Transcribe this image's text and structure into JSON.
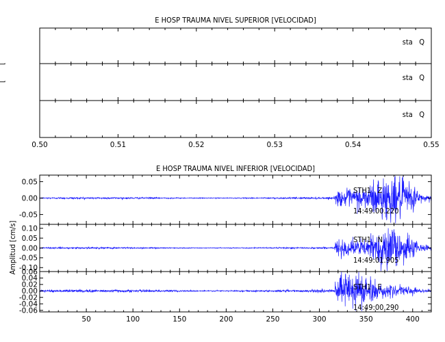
{
  "chart_data": [
    {
      "type": "line",
      "title": "E HOSP TRAUMA NIVEL SUPERIOR [VELOCIDAD]",
      "xlim": [
        0.5,
        0.55
      ],
      "xticks": [
        "0.50",
        "0.51",
        "0.52",
        "0.53",
        "0.54",
        "0.55"
      ],
      "ylabel_fragments": [
        "[",
        "["
      ],
      "panels": [
        {
          "label": "sta Q",
          "values": []
        },
        {
          "label": "sta Q",
          "values": []
        },
        {
          "label": "sta Q",
          "values": []
        }
      ]
    },
    {
      "type": "line",
      "title": "E HOSP TRAUMA NIVEL INFERIOR [VELOCIDAD]",
      "ylabel": "Amplitud [cm/s]",
      "xlim": [
        0,
        420
      ],
      "xticks": [
        "50",
        "100",
        "150",
        "200",
        "250",
        "300",
        "350",
        "400"
      ],
      "event_start_x": 315,
      "series": [
        {
          "name": "STH1 Z",
          "station": "STH1",
          "component": "Z",
          "time_label": "14:49:00.220",
          "ylim": [
            -0.08,
            0.07
          ],
          "yticks": [
            "0.05",
            "0.00",
            "-0.05"
          ],
          "peak_amplitude": 0.065,
          "noise_amplitude": 0.002
        },
        {
          "name": "STH1 N",
          "station": "STH1",
          "component": "N",
          "time_label": "14:49:01.905",
          "ylim": [
            -0.12,
            0.12
          ],
          "yticks": [
            "0.10",
            "0.05",
            "0.00",
            "-0.05",
            "-0.10"
          ],
          "peak_amplitude": 0.11,
          "noise_amplitude": 0.003
        },
        {
          "name": "STH1 E",
          "station": "STH1",
          "component": "E",
          "time_label": "14:49:00.290",
          "ylim": [
            -0.065,
            0.06
          ],
          "yticks": [
            "0.06",
            "0.04",
            "0.02",
            "0.00",
            "-0.02",
            "-0.04",
            "-0.06"
          ],
          "peak_amplitude": 0.055,
          "noise_amplitude": 0.003
        }
      ]
    }
  ]
}
